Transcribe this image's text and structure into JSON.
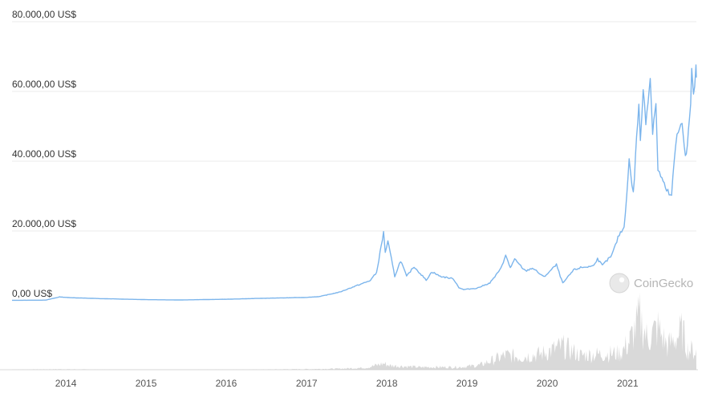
{
  "chart_data": {
    "type": "line",
    "title": "",
    "xlabel": "",
    "ylabel": "",
    "ylim": [
      0,
      80000
    ],
    "xlim": [
      "2013-05-01",
      "2021-11-10"
    ],
    "grid": true,
    "y_ticks": [
      {
        "value": 0,
        "label": "0,00 US$"
      },
      {
        "value": 20000,
        "label": "20.000,00 US$"
      },
      {
        "value": 40000,
        "label": "40.000,00 US$"
      },
      {
        "value": 60000,
        "label": "60.000,00 US$"
      },
      {
        "value": 80000,
        "label": "80.000,00 US$"
      }
    ],
    "x_ticks": [
      "2014",
      "2015",
      "2016",
      "2017",
      "2018",
      "2019",
      "2020",
      "2021"
    ],
    "series": [
      {
        "color": "#7cb5ec",
        "points": [
          [
            "2013-05-01",
            130
          ],
          [
            "2013-10-01",
            180
          ],
          [
            "2013-12-04",
            1100
          ],
          [
            "2014-01-15",
            900
          ],
          [
            "2014-06-01",
            620
          ],
          [
            "2014-12-31",
            320
          ],
          [
            "2015-06-01",
            230
          ],
          [
            "2015-12-31",
            430
          ],
          [
            "2016-06-01",
            680
          ],
          [
            "2016-12-31",
            960
          ],
          [
            "2017-03-01",
            1200
          ],
          [
            "2017-06-01",
            2500
          ],
          [
            "2017-08-15",
            4300
          ],
          [
            "2017-10-15",
            5700
          ],
          [
            "2017-11-15",
            8000
          ],
          [
            "2017-12-17",
            19500
          ],
          [
            "2017-12-25",
            14000
          ],
          [
            "2018-01-06",
            17000
          ],
          [
            "2018-02-06",
            7000
          ],
          [
            "2018-03-05",
            11500
          ],
          [
            "2018-04-01",
            7000
          ],
          [
            "2018-05-05",
            9800
          ],
          [
            "2018-06-29",
            5900
          ],
          [
            "2018-07-25",
            8300
          ],
          [
            "2018-09-01",
            7000
          ],
          [
            "2018-10-31",
            6300
          ],
          [
            "2018-11-25",
            3800
          ],
          [
            "2018-12-15",
            3200
          ],
          [
            "2019-02-15",
            3600
          ],
          [
            "2019-04-15",
            5100
          ],
          [
            "2019-05-30",
            8700
          ],
          [
            "2019-06-26",
            12900
          ],
          [
            "2019-07-17",
            9500
          ],
          [
            "2019-08-06",
            11800
          ],
          [
            "2019-09-24",
            8500
          ],
          [
            "2019-10-26",
            9400
          ],
          [
            "2019-12-17",
            6800
          ],
          [
            "2020-02-12",
            10300
          ],
          [
            "2020-03-12",
            5000
          ],
          [
            "2020-04-30",
            8800
          ],
          [
            "2020-06-01",
            9500
          ],
          [
            "2020-07-25",
            9900
          ],
          [
            "2020-08-17",
            12000
          ],
          [
            "2020-09-08",
            10100
          ],
          [
            "2020-10-21",
            13000
          ],
          [
            "2020-11-24",
            19000
          ],
          [
            "2020-12-16",
            21000
          ],
          [
            "2021-01-08",
            40000
          ],
          [
            "2021-01-27",
            30500
          ],
          [
            "2021-02-21",
            57000
          ],
          [
            "2021-02-28",
            45000
          ],
          [
            "2021-03-13",
            61000
          ],
          [
            "2021-03-25",
            52000
          ],
          [
            "2021-04-14",
            63500
          ],
          [
            "2021-04-25",
            49000
          ],
          [
            "2021-05-10",
            57000
          ],
          [
            "2021-05-19",
            37000
          ],
          [
            "2021-06-01",
            36000
          ],
          [
            "2021-06-22",
            32000
          ],
          [
            "2021-07-20",
            29800
          ],
          [
            "2021-08-01",
            40000
          ],
          [
            "2021-08-14",
            47000
          ],
          [
            "2021-09-06",
            52000
          ],
          [
            "2021-09-21",
            41000
          ],
          [
            "2021-09-30",
            43800
          ],
          [
            "2021-10-15",
            57000
          ],
          [
            "2021-10-20",
            66000
          ],
          [
            "2021-10-28",
            58000
          ],
          [
            "2021-11-08",
            66500
          ],
          [
            "2021-11-10",
            64000
          ]
        ]
      }
    ],
    "volume_series": {
      "color": "#cccccc",
      "points": [
        [
          "2013-05-01",
          0.3
        ],
        [
          "2013-12-01",
          1
        ],
        [
          "2014-06-01",
          0.4
        ],
        [
          "2015-06-01",
          0.3
        ],
        [
          "2016-06-01",
          0.5
        ],
        [
          "2016-12-31",
          1.2
        ],
        [
          "2017-06-01",
          2
        ],
        [
          "2017-10-01",
          4
        ],
        [
          "2017-12-17",
          12
        ],
        [
          "2018-01-15",
          8
        ],
        [
          "2018-06-01",
          5
        ],
        [
          "2018-12-01",
          5
        ],
        [
          "2019-03-01",
          9
        ],
        [
          "2019-06-26",
          28
        ],
        [
          "2019-09-01",
          25
        ],
        [
          "2019-12-01",
          30
        ],
        [
          "2020-03-12",
          45
        ],
        [
          "2020-06-01",
          28
        ],
        [
          "2020-09-01",
          30
        ],
        [
          "2020-12-01",
          32
        ],
        [
          "2021-01-10",
          55
        ],
        [
          "2021-02-26",
          100
        ],
        [
          "2021-04-01",
          60
        ],
        [
          "2021-05-19",
          80
        ],
        [
          "2021-07-01",
          45
        ],
        [
          "2021-09-07",
          75
        ],
        [
          "2021-10-01",
          40
        ],
        [
          "2021-11-10",
          35
        ]
      ]
    },
    "watermark": "CoinGecko"
  }
}
